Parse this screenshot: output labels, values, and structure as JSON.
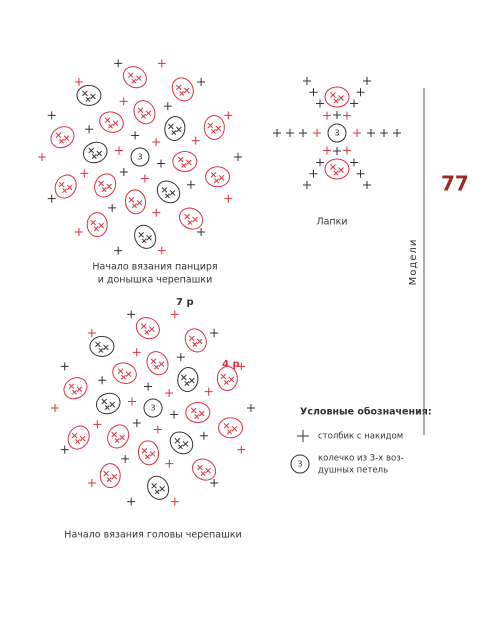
{
  "diagrams": [
    {
      "center": "3",
      "caption": [
        "Начало вязания панциря",
        "и донышка черепашки"
      ]
    },
    {
      "center": "3",
      "caption": [
        "Лапки"
      ]
    },
    {
      "center": "3",
      "caption": [
        "Начало вязания головы черепашки"
      ],
      "row_labels": [
        "7 р",
        "4 р"
      ]
    }
  ],
  "legend": {
    "title": "Условные обозначения:",
    "items": [
      {
        "text": [
          "столбик с накидом"
        ]
      },
      {
        "symbol": "3",
        "text": [
          "колечко из 3-х воз-",
          "душных петель"
        ]
      }
    ]
  },
  "page": {
    "number": "77",
    "section": "Модели"
  }
}
